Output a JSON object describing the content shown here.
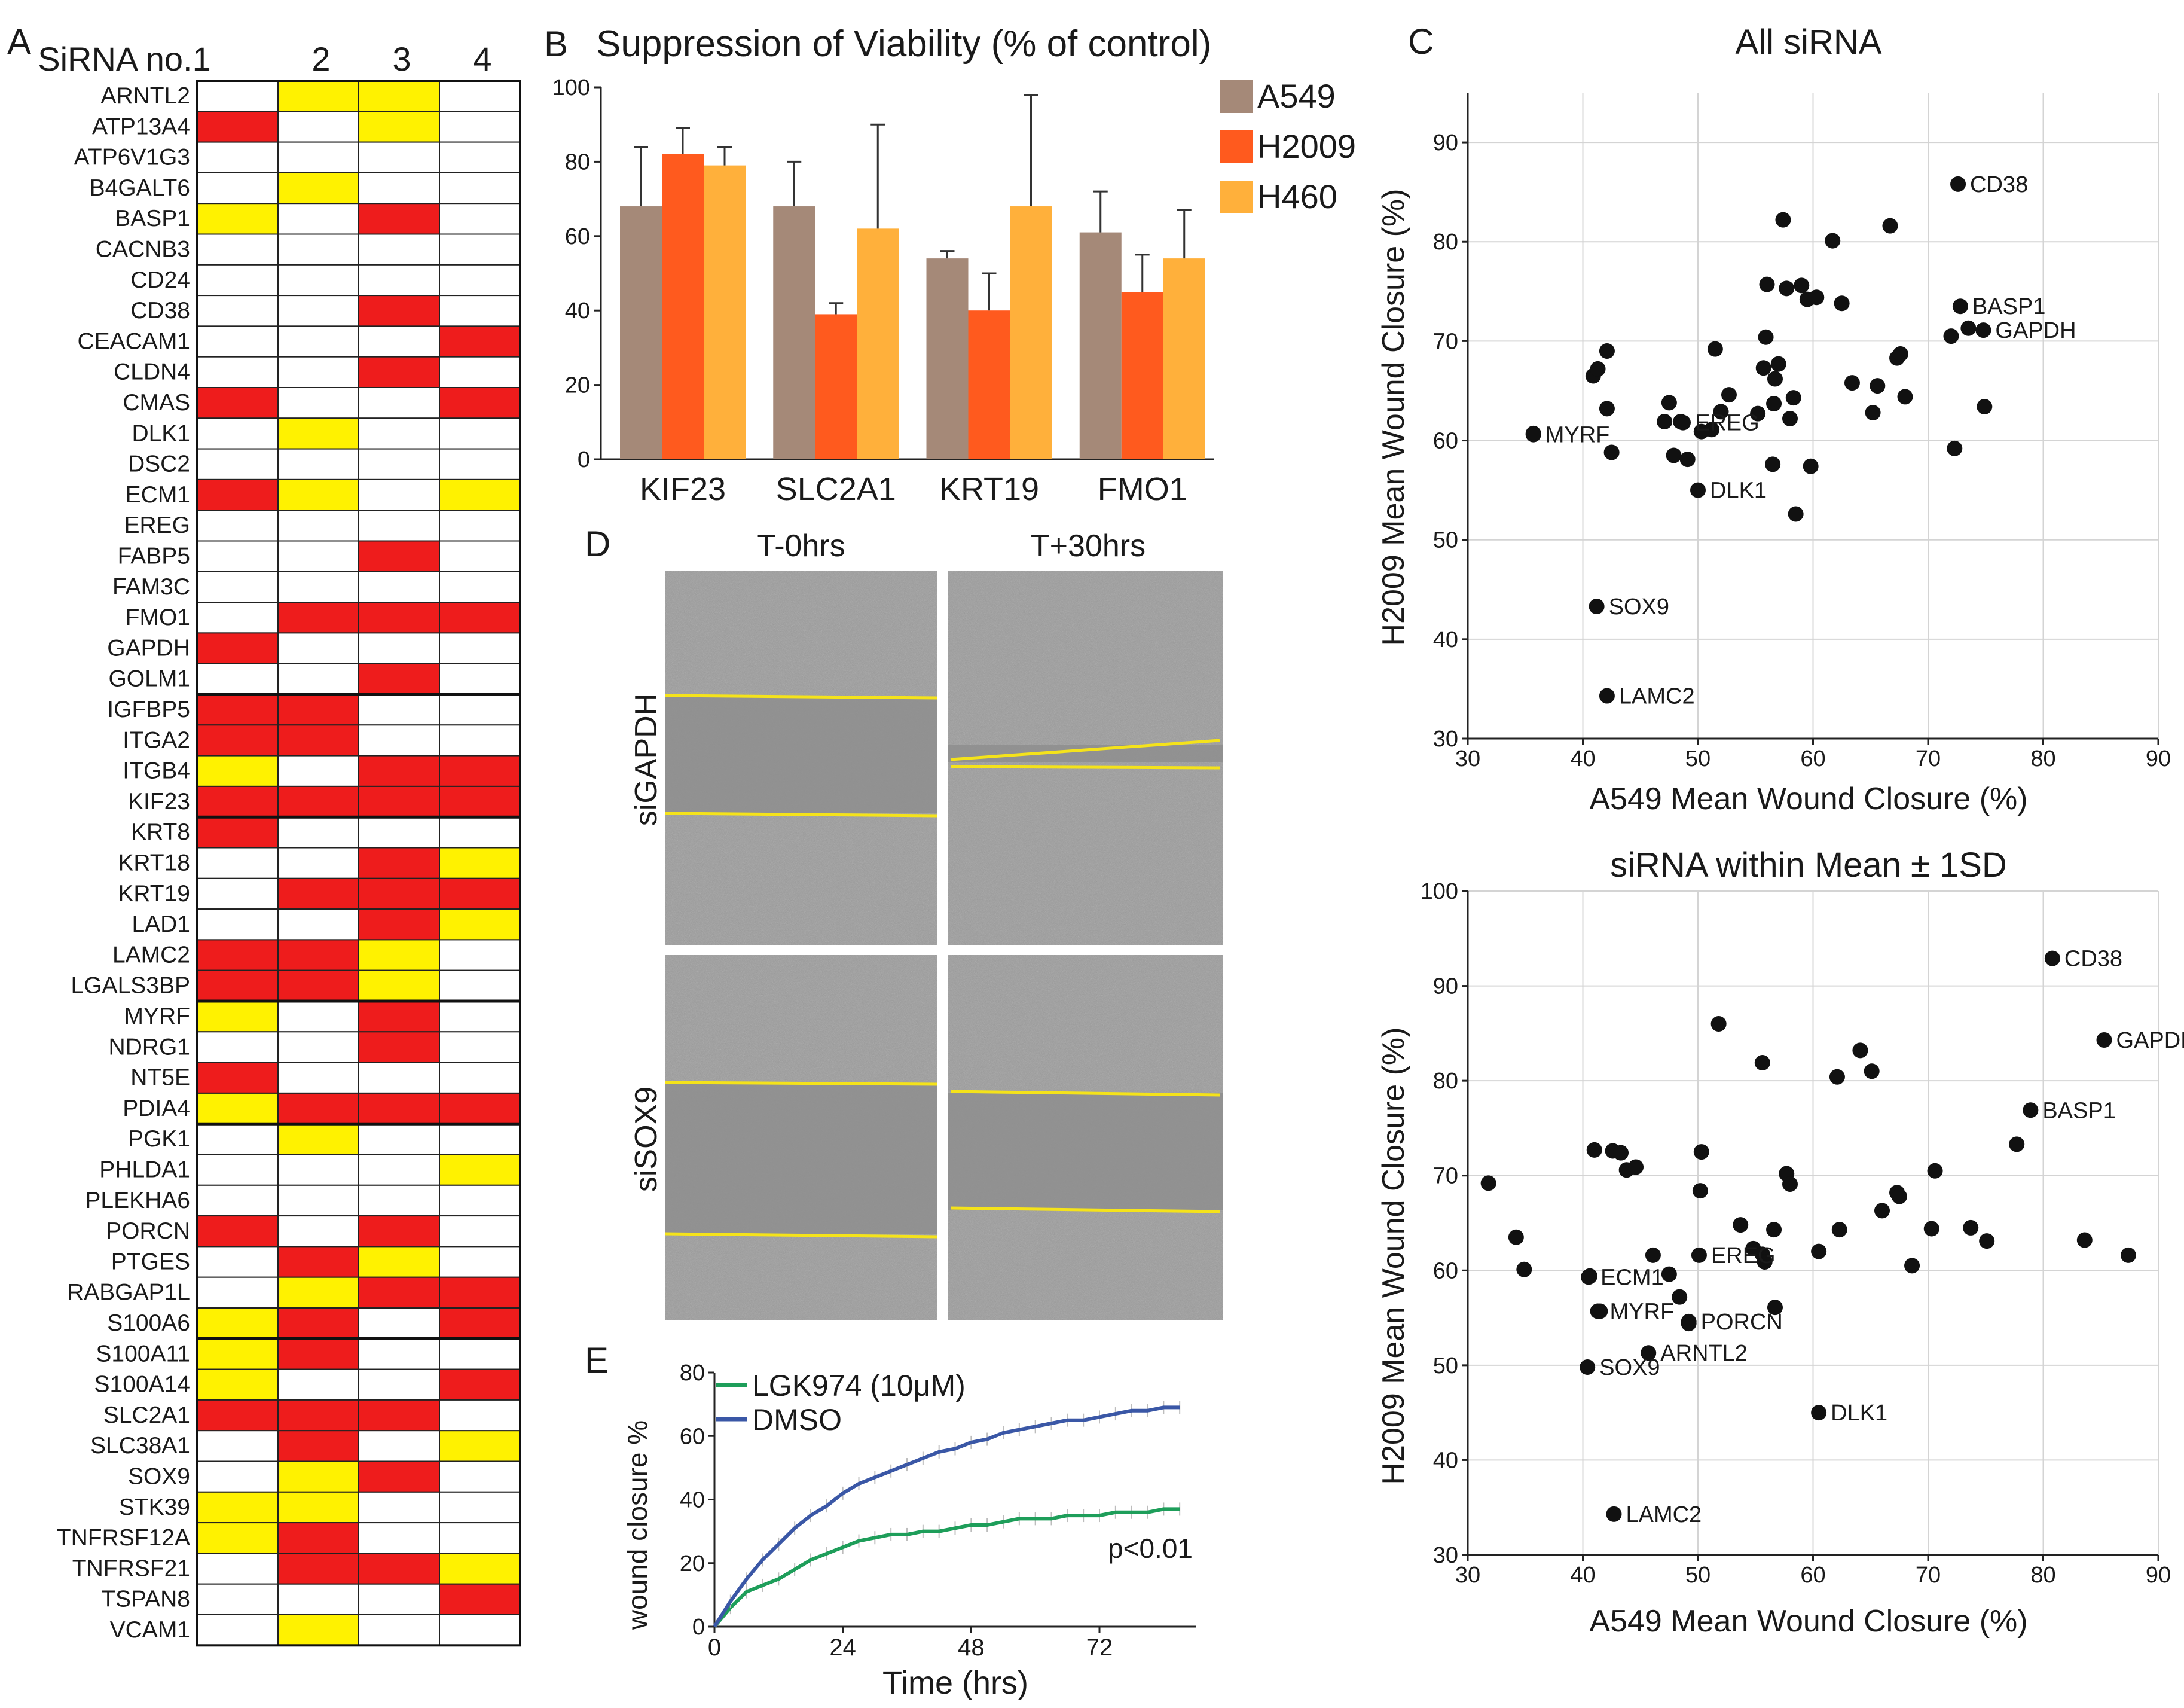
{
  "colors": {
    "red": "#EE1C1C",
    "yellow": "#FFF200",
    "a549": "#A58978",
    "h2009": "#FF5A1E",
    "h460": "#FFB03B",
    "lgk": "#1E9E5A",
    "dmso": "#3A57A6",
    "sox9_red": "#F0282D",
    "wound_line": "#F5E31A"
  },
  "panel_a": {
    "letter": "A",
    "col_headers": [
      "SiRNA no.1",
      "2",
      "3",
      "4"
    ],
    "genes": [
      "ARNTL2",
      "ATP13A4",
      "ATP6V1G3",
      "B4GALT6",
      "BASP1",
      "CACNB3",
      "CD24",
      "CD38",
      "CEACAM1",
      "CLDN4",
      "CMAS",
      "DLK1",
      "DSC2",
      "ECM1",
      "EREG",
      "FABP5",
      "FAM3C",
      "FMO1",
      "GAPDH",
      "GOLM1",
      "IGFBP5",
      "ITGA2",
      "ITGB4",
      "KIF23",
      "KRT8",
      "KRT18",
      "KRT19",
      "LAD1",
      "LAMC2",
      "LGALS3BP",
      "MYRF",
      "NDRG1",
      "NT5E",
      "PDIA4",
      "PGK1",
      "PHLDA1",
      "PLEKHA6",
      "PORCN",
      "PTGES",
      "RABGAP1L",
      "S100A6",
      "S100A11",
      "S100A14",
      "SLC2A1",
      "SLC38A1",
      "SOX9",
      "STK39",
      "TNFRSF12A",
      "TNFRSF21",
      "TSPAN8",
      "VCAM1"
    ],
    "grid": [
      "0YY0",
      "R0Y0",
      "0000",
      "0Y00",
      "Y0R0",
      "0000",
      "0000",
      "00R0",
      "000R",
      "00R0",
      "R00R",
      "0Y00",
      "0000",
      "RY0Y",
      "0000",
      "00R0",
      "0000",
      "0RRR",
      "R000",
      "00R0",
      "RR00",
      "RR00",
      "Y0RR",
      "RRRR",
      "R000",
      "00RY",
      "0RRR",
      "00RY",
      "RRY0",
      "RRY0",
      "Y0R0",
      "00R0",
      "R000",
      "YRRR",
      "0Y00",
      "000Y",
      "0000",
      "R0R0",
      "0RY0",
      "0YRR",
      "YR0R",
      "YR00",
      "Y00R",
      "RRR0",
      "0R0Y",
      "0YR0",
      "YY00",
      "YR00",
      "0RRY",
      "000R",
      "0Y00"
    ],
    "legend_note": "R = red, Y = yellow, 0 = empty"
  },
  "panel_b": {
    "letter": "B",
    "title": "Suppression of Viability (% of control)",
    "chart_data": {
      "type": "bar",
      "title": "Suppression of Viability (% of control)",
      "categories": [
        "KIF23",
        "SLC2A1",
        "KRT19",
        "FMO1"
      ],
      "series": [
        {
          "name": "A549",
          "values": [
            68,
            68,
            54,
            61
          ],
          "errors": [
            16,
            12,
            2,
            11
          ]
        },
        {
          "name": "H2009",
          "values": [
            82,
            39,
            40,
            45
          ],
          "errors": [
            7,
            3,
            10,
            10
          ]
        },
        {
          "name": "H460",
          "values": [
            79,
            62,
            68,
            54
          ],
          "errors": [
            5,
            28,
            30,
            13
          ]
        }
      ],
      "ylim": [
        0,
        100
      ],
      "yticks": [
        "0",
        "20",
        "40",
        "60",
        "80",
        "100"
      ],
      "legend": "right"
    }
  },
  "panel_c": {
    "letter": "C",
    "chart_data": [
      {
        "type": "scatter",
        "title": "All siRNA",
        "xlabel": "A549 Mean Wound Closure (%)",
        "ylabel": "H2009 Mean Wound Closure (%)",
        "xlim": [
          30,
          90
        ],
        "ylim": [
          30,
          95
        ],
        "xticks": [
          "30",
          "40",
          "50",
          "60",
          "70",
          "80",
          "90"
        ],
        "yticks": [
          "30",
          "40",
          "50",
          "60",
          "70",
          "80",
          "90"
        ],
        "points": [
          [
            35.7,
            60.7
          ],
          [
            40.9,
            66.5
          ],
          [
            41.3,
            67.2
          ],
          [
            42.1,
            69
          ],
          [
            42.1,
            63.2
          ],
          [
            42.5,
            58.8
          ],
          [
            47.1,
            61.9
          ],
          [
            47.5,
            63.8
          ],
          [
            47.9,
            58.5
          ],
          [
            48.5,
            61.9
          ],
          [
            49.1,
            58.1
          ],
          [
            50.3,
            60.9
          ],
          [
            51.2,
            61.1
          ],
          [
            51.5,
            69.2
          ],
          [
            52,
            62.9
          ],
          [
            52.7,
            64.6
          ],
          [
            55.2,
            62.7
          ],
          [
            55.7,
            67.3
          ],
          [
            55.9,
            70.4
          ],
          [
            56,
            75.7
          ],
          [
            56.5,
            57.6
          ],
          [
            56.6,
            63.7
          ],
          [
            56.7,
            66.2
          ],
          [
            57,
            67.7
          ],
          [
            57.4,
            82.2
          ],
          [
            57.7,
            75.3
          ],
          [
            58,
            62.2
          ],
          [
            58.3,
            64.3
          ],
          [
            58.5,
            52.6
          ],
          [
            59,
            75.6
          ],
          [
            59.5,
            74.2
          ],
          [
            59.8,
            57.4
          ],
          [
            60.3,
            74.4
          ],
          [
            61.7,
            80.1
          ],
          [
            62.5,
            73.8
          ],
          [
            63.4,
            65.8
          ],
          [
            65.2,
            62.8
          ],
          [
            65.6,
            65.5
          ],
          [
            66.7,
            81.6
          ],
          [
            67.3,
            68.3
          ],
          [
            67.6,
            68.7
          ],
          [
            68,
            64.4
          ],
          [
            72,
            70.5
          ],
          [
            72.3,
            59.2
          ],
          [
            73.5,
            71.3
          ],
          [
            74.9,
            63.4
          ]
        ],
        "labeled_points": [
          {
            "label": "CD38",
            "x": 72.6,
            "y": 85.8,
            "highlight": false
          },
          {
            "label": "BASP1",
            "x": 72.8,
            "y": 73.5,
            "highlight": false
          },
          {
            "label": "GAPDH",
            "x": 74.8,
            "y": 71.1,
            "highlight": false
          },
          {
            "label": "EREG",
            "x": 48.7,
            "y": 61.8,
            "highlight": false
          },
          {
            "label": "MYRF",
            "x": 35.7,
            "y": 60.6,
            "highlight": false
          },
          {
            "label": "DLK1",
            "x": 50,
            "y": 55,
            "highlight": false
          },
          {
            "label": "SOX9",
            "x": 41.2,
            "y": 43.3,
            "highlight": true
          },
          {
            "label": "LAMC2",
            "x": 42.1,
            "y": 34.3,
            "highlight": false
          }
        ]
      },
      {
        "type": "scatter",
        "title": "siRNA within Mean ± 1SD",
        "xlabel": "A549 Mean Wound Closure (%)",
        "ylabel": "H2009 Mean Wound Closure (%)",
        "xlim": [
          30,
          90
        ],
        "ylim": [
          30,
          100
        ],
        "xticks": [
          "30",
          "40",
          "50",
          "60",
          "70",
          "80",
          "90"
        ],
        "yticks": [
          "30",
          "40",
          "50",
          "60",
          "70",
          "80",
          "90",
          "100"
        ],
        "points": [
          [
            31.8,
            69.2
          ],
          [
            34.2,
            63.5
          ],
          [
            34.9,
            60.1
          ],
          [
            40.6,
            59.4
          ],
          [
            41,
            72.7
          ],
          [
            41.5,
            55.7
          ],
          [
            42.6,
            72.6
          ],
          [
            43.3,
            72.4
          ],
          [
            43.8,
            70.6
          ],
          [
            44.6,
            70.9
          ],
          [
            46.1,
            61.6
          ],
          [
            47.5,
            59.6
          ],
          [
            48.4,
            57.2
          ],
          [
            49.2,
            54.4
          ],
          [
            50.2,
            68.4
          ],
          [
            50.3,
            72.5
          ],
          [
            51.8,
            86
          ],
          [
            53.7,
            64.8
          ],
          [
            55.6,
            61.7
          ],
          [
            55.8,
            60.9
          ],
          [
            56.6,
            64.3
          ],
          [
            57.7,
            70.2
          ],
          [
            58,
            69.1
          ],
          [
            60.5,
            62
          ],
          [
            62.1,
            80.4
          ],
          [
            62.3,
            64.3
          ],
          [
            64.1,
            83.2
          ],
          [
            65.1,
            81
          ],
          [
            66,
            66.3
          ],
          [
            67.3,
            68.2
          ],
          [
            67.5,
            67.8
          ],
          [
            68.6,
            60.5
          ],
          [
            70.3,
            64.4
          ],
          [
            70.6,
            70.5
          ],
          [
            73.7,
            64.5
          ],
          [
            75.1,
            63.1
          ],
          [
            77.7,
            73.3
          ],
          [
            83.6,
            63.2
          ],
          [
            87.4,
            61.6
          ],
          [
            55.6,
            81.9
          ],
          [
            54.8,
            62.3
          ],
          [
            56.7,
            56.1
          ]
        ],
        "labeled_points": [
          {
            "label": "CD38",
            "x": 80.8,
            "y": 92.9,
            "highlight": false
          },
          {
            "label": "GAPDH",
            "x": 85.3,
            "y": 84.3,
            "highlight": false
          },
          {
            "label": "BASP1",
            "x": 78.9,
            "y": 76.9,
            "highlight": false
          },
          {
            "label": "EREG",
            "x": 50.1,
            "y": 61.6,
            "highlight": false
          },
          {
            "label": "ECM1",
            "x": 40.5,
            "y": 59.3,
            "highlight": false
          },
          {
            "label": "MYRF",
            "x": 41.3,
            "y": 55.7,
            "highlight": false
          },
          {
            "label": "PORCN",
            "x": 49.2,
            "y": 54.6,
            "highlight": true
          },
          {
            "label": "ARNTL2",
            "x": 45.7,
            "y": 51.3,
            "highlight": false
          },
          {
            "label": "SOX9",
            "x": 40.4,
            "y": 49.8,
            "highlight": true
          },
          {
            "label": "DLK1",
            "x": 60.5,
            "y": 45,
            "highlight": false
          },
          {
            "label": "LAMC2",
            "x": 42.7,
            "y": 34.3,
            "highlight": false
          }
        ]
      }
    ]
  },
  "panel_d": {
    "letter": "D",
    "col_titles": [
      "T-0hrs",
      "T+30hrs"
    ],
    "row_labels": [
      "siGAPDH",
      "siSOX9"
    ]
  },
  "panel_e": {
    "letter": "E",
    "chart_data": {
      "type": "line",
      "xlabel": "Time (hrs)",
      "ylabel": "wound closure %",
      "xlim": [
        0,
        90
      ],
      "ylim": [
        0,
        80
      ],
      "xticks": [
        "0",
        "24",
        "48",
        "72"
      ],
      "yticks": [
        "0",
        "20",
        "40",
        "60",
        "80"
      ],
      "annotation": "p<0.01",
      "series": [
        {
          "name": "LGK974 (10μM)",
          "x": [
            0,
            3,
            6,
            9,
            12,
            15,
            18,
            21,
            24,
            27,
            30,
            33,
            36,
            39,
            42,
            45,
            48,
            51,
            54,
            57,
            60,
            63,
            66,
            69,
            72,
            75,
            78,
            81,
            84,
            87
          ],
          "values": [
            0,
            6,
            11,
            13,
            15,
            18,
            21,
            23,
            25,
            27,
            28,
            29,
            29,
            30,
            30,
            31,
            32,
            32,
            33,
            34,
            34,
            34,
            35,
            35,
            35,
            36,
            36,
            36,
            37,
            37
          ]
        },
        {
          "name": "DMSO",
          "x": [
            0,
            3,
            6,
            9,
            12,
            15,
            18,
            21,
            24,
            27,
            30,
            33,
            36,
            39,
            42,
            45,
            48,
            51,
            54,
            57,
            60,
            63,
            66,
            69,
            72,
            75,
            78,
            81,
            84,
            87
          ],
          "values": [
            0,
            8,
            15,
            21,
            26,
            31,
            35,
            38,
            42,
            45,
            47,
            49,
            51,
            53,
            55,
            56,
            58,
            59,
            61,
            62,
            63,
            64,
            65,
            65,
            66,
            67,
            68,
            68,
            69,
            69
          ]
        }
      ]
    }
  }
}
